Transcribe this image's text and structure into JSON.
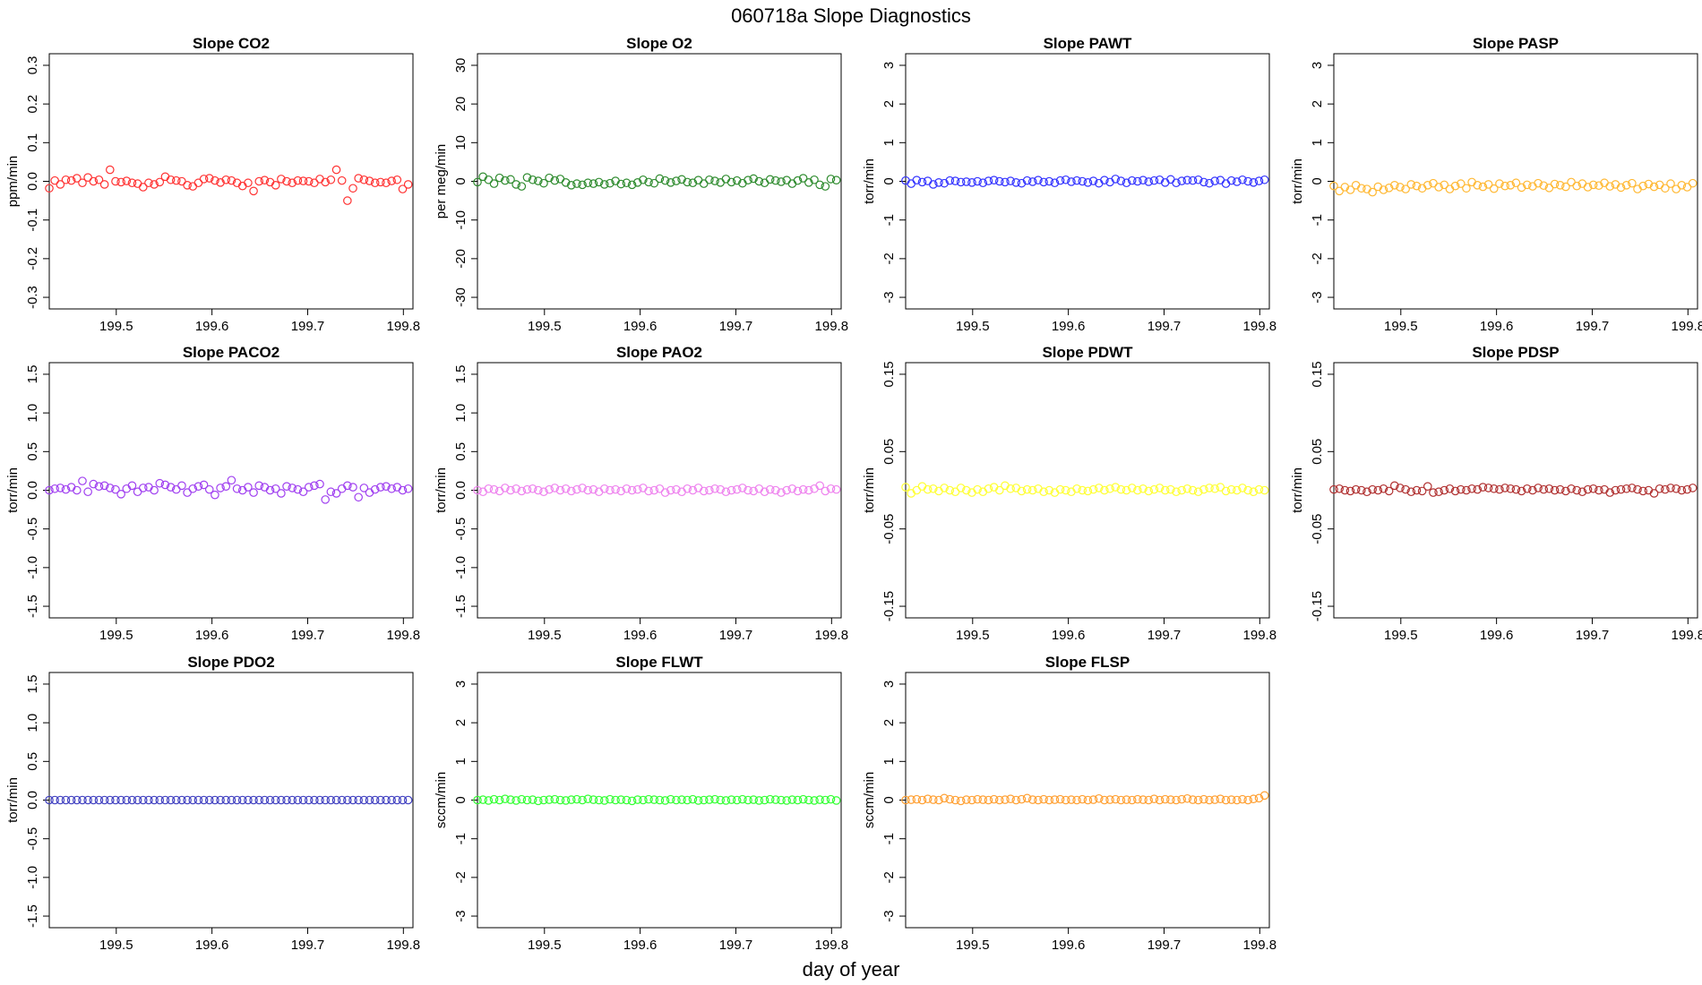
{
  "figure": {
    "title": "060718a   Slope Diagnostics",
    "xlabel": "day of year",
    "x_range": [
      199.43,
      199.81
    ],
    "x_ticks": [
      "199.5",
      "199.6",
      "199.7",
      "199.8"
    ],
    "x_tick_values": [
      199.5,
      199.6,
      199.7,
      199.8
    ]
  },
  "chart_data": [
    {
      "type": "scatter",
      "title": "Slope CO2",
      "ylabel": "ppm/min",
      "color": "#ff3333",
      "ylim": [
        -0.33,
        0.33
      ],
      "yticks": [
        {
          "v": -0.3,
          "t": "-0.3"
        },
        {
          "v": -0.2,
          "t": "-0.2"
        },
        {
          "v": -0.1,
          "t": "-0.1"
        },
        {
          "v": 0,
          "t": "0.0"
        },
        {
          "v": 0.1,
          "t": "0.1"
        },
        {
          "v": 0.2,
          "t": "0.2"
        },
        {
          "v": 0.3,
          "t": "0.3"
        }
      ],
      "y": [
        -0.018,
        0.002,
        -0.008,
        0.004,
        0.002,
        0.008,
        -0.004,
        0.01,
        0.0,
        0.004,
        -0.008,
        0.03,
        0.0,
        -0.002,
        0.001,
        -0.004,
        -0.006,
        -0.015,
        -0.004,
        -0.008,
        -0.002,
        0.012,
        0.004,
        0.002,
        0.0,
        -0.01,
        -0.013,
        -0.004,
        0.006,
        0.008,
        0.002,
        -0.003,
        0.004,
        0.002,
        -0.004,
        -0.012,
        -0.004,
        -0.025,
        0.0,
        0.003,
        -0.002,
        -0.01,
        0.006,
        0.0,
        -0.004,
        0.002,
        0.001,
        0.0,
        -0.004,
        0.006,
        -0.002,
        0.004,
        0.03,
        0.002,
        -0.05,
        -0.018,
        0.008,
        0.004,
        0.001,
        -0.004,
        -0.002,
        -0.004,
        0.001,
        0.004,
        -0.02,
        -0.008
      ]
    },
    {
      "type": "scatter",
      "title": "Slope O2",
      "ylabel": "per meg/min",
      "color": "#2e8b2e",
      "ylim": [
        -33,
        33
      ],
      "yticks": [
        {
          "v": -30,
          "t": "-30"
        },
        {
          "v": -20,
          "t": "-20"
        },
        {
          "v": -10,
          "t": "-10"
        },
        {
          "v": 0,
          "t": "0"
        },
        {
          "v": 10,
          "t": "10"
        },
        {
          "v": 20,
          "t": "20"
        },
        {
          "v": 30,
          "t": "30"
        }
      ],
      "y": [
        -0.2,
        1.2,
        0.4,
        -0.6,
        0.9,
        0.2,
        0.5,
        -0.8,
        -1.3,
        1.0,
        0.4,
        0.1,
        -0.5,
        0.9,
        0.2,
        0.6,
        -0.3,
        -1.0,
        -0.6,
        -0.9,
        -0.4,
        -0.6,
        -0.2,
        -0.8,
        -0.5,
        0.1,
        -0.7,
        -0.4,
        -0.9,
        -0.3,
        0.4,
        -0.2,
        -0.5,
        0.7,
        0.2,
        -0.3,
        0.1,
        0.5,
        -0.2,
        -0.4,
        0.3,
        -0.6,
        0.4,
        0.1,
        -0.3,
        0.6,
        -0.2,
        0.2,
        -0.5,
        0.3,
        0.7,
        0.0,
        -0.4,
        0.5,
        0.2,
        -0.1,
        0.3,
        -0.6,
        0.2,
        0.8,
        -0.3,
        0.4,
        -0.9,
        -1.3,
        0.6,
        0.3
      ]
    },
    {
      "type": "scatter",
      "title": "Slope PAWT",
      "ylabel": "torr/min",
      "color": "#3333ff",
      "ylim": [
        -3.3,
        3.3
      ],
      "yticks": [
        {
          "v": -3,
          "t": "-3"
        },
        {
          "v": -2,
          "t": "-2"
        },
        {
          "v": -1,
          "t": "-1"
        },
        {
          "v": 0,
          "t": "0"
        },
        {
          "v": 1,
          "t": "1"
        },
        {
          "v": 2,
          "t": "2"
        },
        {
          "v": 3,
          "t": "3"
        }
      ],
      "y": [
        0.02,
        -0.06,
        0.03,
        -0.02,
        0.01,
        -0.08,
        -0.03,
        -0.05,
        0.02,
        0.01,
        -0.02,
        -0.01,
        -0.03,
        0.0,
        -0.04,
        0.01,
        0.03,
        0.0,
        -0.02,
        0.01,
        -0.03,
        -0.05,
        0.02,
        -0.01,
        0.03,
        -0.02,
        0.0,
        -0.04,
        0.02,
        0.04,
        -0.01,
        0.02,
        0.0,
        -0.03,
        0.01,
        -0.05,
        0.03,
        -0.02,
        0.06,
        0.01,
        -0.04,
        0.02,
        0.0,
        0.03,
        -0.01,
        0.02,
        0.04,
        -0.03,
        0.05,
        -0.04,
        0.01,
        0.03,
        0.02,
        0.04,
        -0.02,
        -0.05,
        0.01,
        0.03,
        -0.06,
        0.02,
        -0.01,
        0.04,
        0.0,
        -0.03,
        0.01,
        0.04
      ]
    },
    {
      "type": "scatter",
      "title": "Slope PASP",
      "ylabel": "torr/min",
      "color": "#ffb833",
      "ylim": [
        -3.3,
        3.3
      ],
      "yticks": [
        {
          "v": -3,
          "t": "-3"
        },
        {
          "v": -2,
          "t": "-2"
        },
        {
          "v": -1,
          "t": "-1"
        },
        {
          "v": 0,
          "t": "0"
        },
        {
          "v": 1,
          "t": "1"
        },
        {
          "v": 2,
          "t": "2"
        },
        {
          "v": 3,
          "t": "3"
        }
      ],
      "y": [
        -0.12,
        -0.25,
        -0.15,
        -0.22,
        -0.1,
        -0.18,
        -0.2,
        -0.28,
        -0.14,
        -0.22,
        -0.17,
        -0.1,
        -0.15,
        -0.2,
        -0.08,
        -0.12,
        -0.18,
        -0.1,
        -0.05,
        -0.15,
        -0.09,
        -0.2,
        -0.12,
        -0.06,
        -0.18,
        -0.02,
        -0.1,
        -0.14,
        -0.08,
        -0.19,
        -0.06,
        -0.12,
        -0.1,
        -0.04,
        -0.16,
        -0.09,
        -0.13,
        -0.05,
        -0.11,
        -0.17,
        -0.07,
        -0.1,
        -0.14,
        -0.02,
        -0.12,
        -0.06,
        -0.15,
        -0.09,
        -0.11,
        -0.04,
        -0.13,
        -0.08,
        -0.16,
        -0.1,
        -0.05,
        -0.2,
        -0.12,
        -0.07,
        -0.14,
        -0.09,
        -0.18,
        -0.06,
        -0.2,
        -0.1,
        -0.15,
        -0.05
      ]
    },
    {
      "type": "scatter",
      "title": "Slope PACO2",
      "ylabel": "torr/min",
      "color": "#a040f0",
      "ylim": [
        -1.65,
        1.65
      ],
      "yticks": [
        {
          "v": -1.5,
          "t": "-1.5"
        },
        {
          "v": -1.0,
          "t": "-1.0"
        },
        {
          "v": -0.5,
          "t": "-0.5"
        },
        {
          "v": 0,
          "t": "0.0"
        },
        {
          "v": 0.5,
          "t": "0.5"
        },
        {
          "v": 1.0,
          "t": "1.0"
        },
        {
          "v": 1.5,
          "t": "1.5"
        }
      ],
      "y": [
        0.0,
        0.02,
        0.03,
        0.01,
        0.04,
        0.0,
        0.12,
        -0.02,
        0.08,
        0.05,
        0.06,
        0.03,
        0.01,
        -0.05,
        0.02,
        0.06,
        -0.02,
        0.03,
        0.04,
        0.0,
        0.09,
        0.07,
        0.04,
        0.01,
        0.06,
        -0.03,
        0.02,
        0.05,
        0.07,
        0.01,
        -0.06,
        0.03,
        0.05,
        0.13,
        0.02,
        0.0,
        0.04,
        -0.03,
        0.06,
        0.04,
        0.0,
        0.02,
        -0.04,
        0.05,
        0.03,
        0.01,
        -0.02,
        0.04,
        0.06,
        0.08,
        -0.12,
        -0.02,
        -0.04,
        0.02,
        0.06,
        0.04,
        -0.09,
        0.03,
        -0.03,
        0.01,
        0.04,
        0.05,
        0.02,
        0.04,
        0.0,
        0.02
      ]
    },
    {
      "type": "scatter",
      "title": "Slope PAO2",
      "ylabel": "torr/min",
      "color": "#ee82ee",
      "ylim": [
        -1.65,
        1.65
      ],
      "yticks": [
        {
          "v": -1.5,
          "t": "-1.5"
        },
        {
          "v": -1.0,
          "t": "-1.0"
        },
        {
          "v": -0.5,
          "t": "-0.5"
        },
        {
          "v": 0,
          "t": "0.0"
        },
        {
          "v": 0.5,
          "t": "0.5"
        },
        {
          "v": 1.0,
          "t": "1.0"
        },
        {
          "v": 1.5,
          "t": "1.5"
        }
      ],
      "y": [
        0.0,
        -0.02,
        0.02,
        0.01,
        -0.01,
        0.03,
        0.0,
        0.02,
        -0.01,
        0.01,
        0.02,
        0.0,
        -0.02,
        0.01,
        0.03,
        0.0,
        0.02,
        -0.01,
        0.01,
        0.03,
        0.0,
        0.01,
        -0.02,
        0.02,
        0.0,
        0.01,
        -0.01,
        0.02,
        0.0,
        0.01,
        0.03,
        -0.01,
        0.0,
        0.02,
        -0.03,
        0.0,
        0.01,
        -0.02,
        0.02,
        0.0,
        0.03,
        -0.01,
        0.0,
        0.02,
        0.01,
        -0.02,
        0.0,
        0.01,
        0.03,
        0.0,
        -0.01,
        0.02,
        -0.02,
        0.01,
        0.0,
        -0.03,
        0.0,
        0.02,
        -0.01,
        0.01,
        0.0,
        0.02,
        0.06,
        -0.01,
        0.02,
        0.01
      ]
    },
    {
      "type": "scatter",
      "title": "Slope PDWT",
      "ylabel": "torr/min",
      "color": "#ffff33",
      "ylim": [
        -0.165,
        0.165
      ],
      "yticks": [
        {
          "v": -0.15,
          "t": "-0.15"
        },
        {
          "v": -0.05,
          "t": "-0.05"
        },
        {
          "v": 0.05,
          "t": "0.05"
        },
        {
          "v": 0.15,
          "t": "0.15"
        }
      ],
      "y": [
        0.004,
        -0.004,
        0.0,
        0.005,
        0.001,
        0.002,
        -0.001,
        0.003,
        0.0,
        -0.002,
        0.003,
        0.0,
        -0.003,
        0.001,
        -0.002,
        0.002,
        0.004,
        0.0,
        0.006,
        0.002,
        0.003,
        -0.001,
        0.001,
        0.0,
        0.002,
        -0.002,
        0.0,
        -0.003,
        0.001,
        0.0,
        -0.002,
        0.002,
        0.0,
        -0.001,
        0.001,
        0.003,
        0.0,
        0.002,
        0.004,
        0.001,
        0.0,
        0.003,
        0.0,
        0.002,
        -0.001,
        0.001,
        0.003,
        0.0,
        0.001,
        -0.002,
        0.0,
        0.002,
        0.0,
        -0.002,
        0.001,
        0.003,
        0.002,
        0.004,
        -0.001,
        0.001,
        0.0,
        0.003,
        0.0,
        -0.002,
        0.001,
        0.0
      ]
    },
    {
      "type": "scatter",
      "title": "Slope PDSP",
      "ylabel": "torr/min",
      "color": "#b03030",
      "ylim": [
        -0.165,
        0.165
      ],
      "yticks": [
        {
          "v": -0.15,
          "t": "-0.15"
        },
        {
          "v": -0.05,
          "t": "-0.05"
        },
        {
          "v": 0.05,
          "t": "0.05"
        },
        {
          "v": 0.15,
          "t": "0.15"
        }
      ],
      "y": [
        0.001,
        0.002,
        0.0,
        -0.001,
        0.001,
        0.0,
        -0.002,
        0.001,
        0.0,
        0.002,
        -0.001,
        0.006,
        0.003,
        0.001,
        -0.002,
        0.0,
        -0.001,
        0.005,
        -0.003,
        -0.002,
        0.0,
        0.002,
        -0.001,
        0.001,
        0.0,
        0.002,
        0.001,
        0.004,
        0.003,
        0.002,
        0.001,
        0.003,
        0.002,
        0.001,
        -0.001,
        0.002,
        0.0,
        0.003,
        0.001,
        0.002,
        0.0,
        0.001,
        -0.001,
        0.002,
        0.0,
        -0.002,
        0.001,
        0.002,
        0.0,
        0.001,
        -0.003,
        0.0,
        0.001,
        0.002,
        0.003,
        0.001,
        -0.001,
        0.0,
        -0.004,
        0.002,
        0.001,
        0.003,
        0.002,
        0.0,
        0.001,
        0.003
      ]
    },
    {
      "type": "scatter",
      "title": "Slope PDO2",
      "ylabel": "torr/min",
      "color": "#4040c0",
      "ylim": [
        -1.65,
        1.65
      ],
      "yticks": [
        {
          "v": -1.5,
          "t": "-1.5"
        },
        {
          "v": -1.0,
          "t": "-1.0"
        },
        {
          "v": -0.5,
          "t": "-0.5"
        },
        {
          "v": 0,
          "t": "0.0"
        },
        {
          "v": 0.5,
          "t": "0.5"
        },
        {
          "v": 1.0,
          "t": "1.0"
        },
        {
          "v": 1.5,
          "t": "1.5"
        }
      ],
      "y": [
        0,
        0,
        0,
        0,
        0,
        0,
        0,
        0,
        0,
        0,
        0,
        0,
        0,
        0,
        0,
        0,
        0,
        0,
        0,
        0,
        0,
        0,
        0,
        0,
        0,
        0,
        0,
        0,
        0,
        0,
        0,
        0,
        0,
        0,
        0,
        0,
        0,
        0,
        0,
        0,
        0,
        0,
        0,
        0,
        0,
        0,
        0,
        0,
        0,
        0,
        0,
        0,
        0,
        0,
        0,
        0,
        0,
        0,
        0,
        0,
        0,
        0,
        0,
        0,
        0,
        0
      ]
    },
    {
      "type": "scatter",
      "title": "Slope FLWT",
      "ylabel": "sccm/min",
      "color": "#33ff33",
      "ylim": [
        -3.3,
        3.3
      ],
      "yticks": [
        {
          "v": -3,
          "t": "-3"
        },
        {
          "v": -2,
          "t": "-2"
        },
        {
          "v": -1,
          "t": "-1"
        },
        {
          "v": 0,
          "t": "0"
        },
        {
          "v": 1,
          "t": "1"
        },
        {
          "v": 2,
          "t": "2"
        },
        {
          "v": 3,
          "t": "3"
        }
      ],
      "y": [
        0.0,
        0.01,
        -0.01,
        0.02,
        0.0,
        0.03,
        0.01,
        -0.01,
        0.02,
        0.0,
        0.01,
        -0.02,
        0.0,
        0.01,
        0.02,
        0.0,
        -0.01,
        0.01,
        0.02,
        0.0,
        0.03,
        0.01,
        0.0,
        -0.01,
        0.02,
        0.0,
        0.01,
        0.0,
        -0.02,
        0.01,
        0.0,
        0.02,
        0.01,
        0.0,
        -0.01,
        0.02,
        0.0,
        0.01,
        0.0,
        0.02,
        -0.01,
        0.0,
        0.01,
        0.02,
        0.0,
        -0.01,
        0.01,
        0.0,
        0.02,
        0.0,
        0.01,
        -0.01,
        0.0,
        0.02,
        0.01,
        0.0,
        -0.01,
        0.01,
        0.0,
        0.02,
        0.0,
        -0.01,
        0.01,
        0.0,
        0.02,
        -0.01
      ]
    },
    {
      "type": "scatter",
      "title": "Slope FLSP",
      "ylabel": "sccm/min",
      "color": "#ffa033",
      "ylim": [
        -3.3,
        3.3
      ],
      "yticks": [
        {
          "v": -3,
          "t": "-3"
        },
        {
          "v": -2,
          "t": "-2"
        },
        {
          "v": -1,
          "t": "-1"
        },
        {
          "v": 0,
          "t": "0"
        },
        {
          "v": 1,
          "t": "1"
        },
        {
          "v": 2,
          "t": "2"
        },
        {
          "v": 3,
          "t": "3"
        }
      ],
      "y": [
        0.0,
        0.01,
        0.02,
        0.0,
        0.03,
        0.01,
        0.0,
        0.05,
        0.02,
        0.0,
        -0.02,
        0.01,
        0.0,
        0.02,
        0.01,
        0.0,
        0.02,
        0.0,
        0.01,
        0.03,
        0.0,
        0.02,
        0.05,
        0.01,
        0.0,
        0.02,
        0.0,
        0.01,
        0.02,
        0.0,
        0.01,
        0.0,
        0.02,
        0.0,
        0.01,
        0.04,
        0.0,
        0.01,
        0.02,
        0.0,
        0.01,
        0.0,
        0.02,
        0.01,
        0.0,
        0.03,
        0.0,
        0.02,
        0.01,
        0.0,
        0.02,
        0.04,
        0.01,
        0.0,
        0.02,
        0.0,
        0.01,
        0.03,
        0.0,
        0.01,
        0.0,
        0.02,
        0.0,
        0.03,
        0.05,
        0.12
      ]
    }
  ]
}
